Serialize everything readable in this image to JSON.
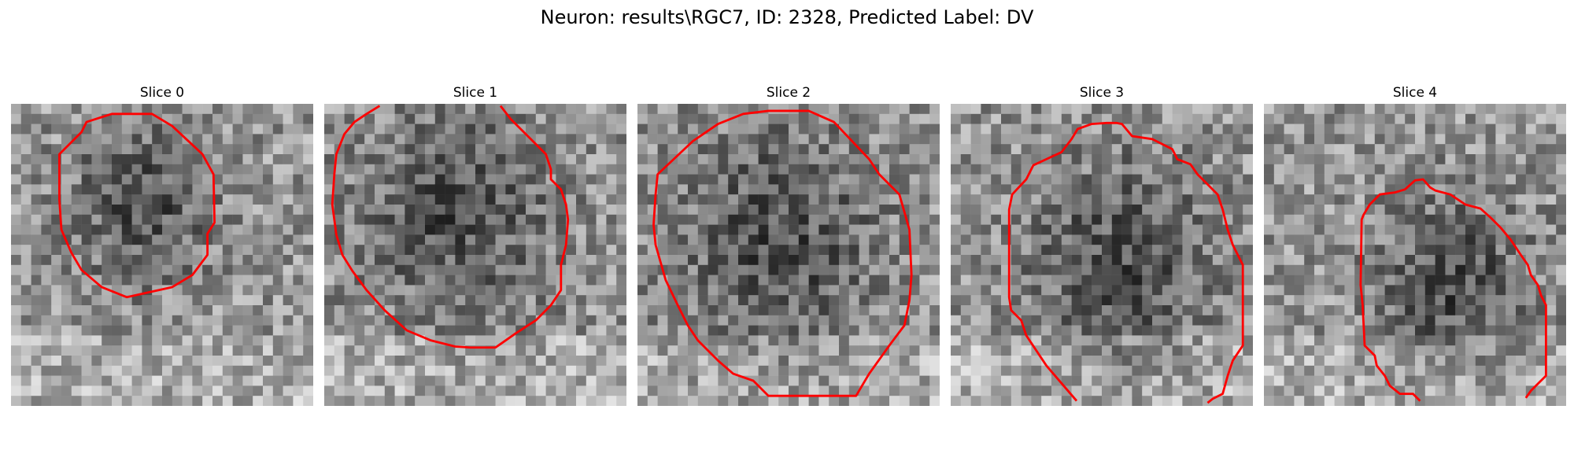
{
  "figure": {
    "title": "Neuron: results\\RGC7, ID: 2328, Predicted Label: DV"
  },
  "slices": [
    {
      "title": "Slice 0",
      "contour_icon": "red-cell-contour"
    },
    {
      "title": "Slice 1",
      "contour_icon": "red-cell-contour"
    },
    {
      "title": "Slice 2",
      "contour_icon": "red-cell-contour"
    },
    {
      "title": "Slice 3",
      "contour_icon": "red-cell-contour"
    },
    {
      "title": "Slice 4",
      "contour_icon": "red-cell-contour"
    }
  ],
  "colors": {
    "contour": "#ff0000",
    "background": "#ffffff"
  }
}
